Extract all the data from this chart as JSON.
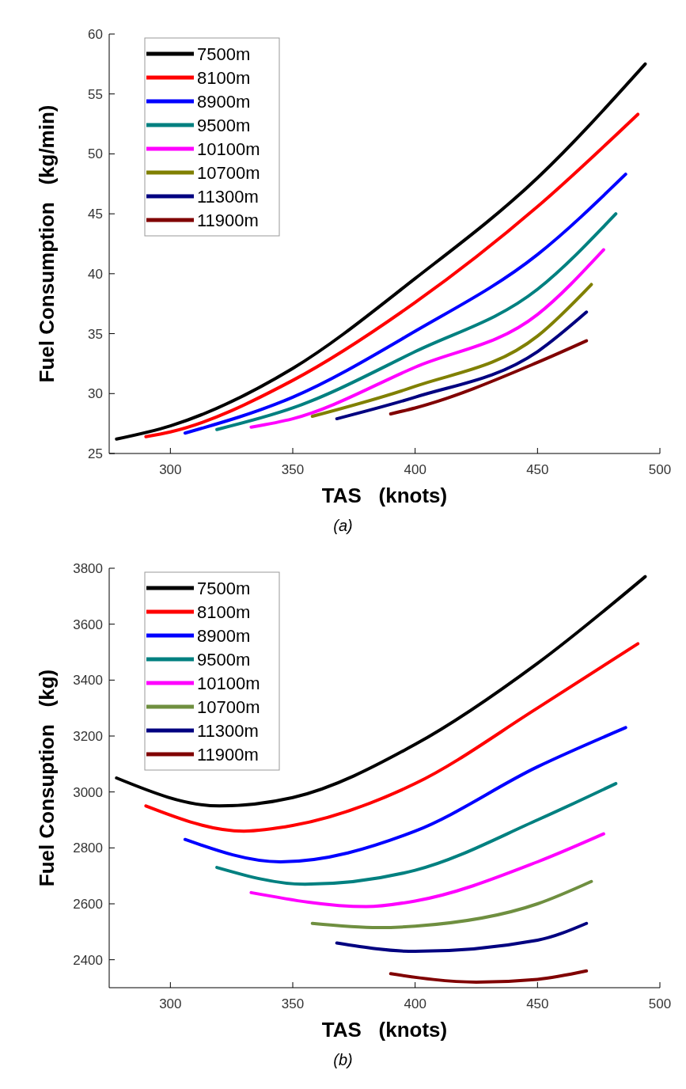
{
  "chart_data": [
    {
      "type": "line",
      "xlabel": "TAS   (knots)",
      "ylabel": "Fuel Consumption   (kg/min)",
      "xlim": [
        275,
        500
      ],
      "xticks": [
        300,
        350,
        400,
        450,
        500
      ],
      "ylim": [
        25,
        60
      ],
      "yticks": [
        25,
        30,
        35,
        40,
        45,
        50,
        55,
        60
      ],
      "legend": "top left",
      "annotations": [
        "(a)"
      ],
      "series": [
        {
          "name": "7500m",
          "color": "#000000",
          "x": [
            278,
            300,
            350,
            400,
            450,
            494
          ],
          "values": [
            26.2,
            27.3,
            32.1,
            39.6,
            48.0,
            57.5
          ]
        },
        {
          "name": "8100m",
          "color": "#ff0000",
          "x": [
            290,
            300,
            350,
            400,
            450,
            491
          ],
          "values": [
            26.4,
            26.8,
            31.1,
            37.6,
            45.6,
            53.3
          ]
        },
        {
          "name": "8900m",
          "color": "#0000ff",
          "x": [
            306,
            350,
            400,
            450,
            486
          ],
          "values": [
            26.7,
            29.7,
            35.2,
            41.6,
            48.3
          ]
        },
        {
          "name": "9500m",
          "color": "#008080",
          "x": [
            319,
            350,
            400,
            450,
            482
          ],
          "values": [
            27.0,
            28.8,
            33.5,
            38.7,
            45.0
          ]
        },
        {
          "name": "10100m",
          "color": "#ff00ff",
          "x": [
            333,
            350,
            400,
            450,
            477
          ],
          "values": [
            27.2,
            27.9,
            32.2,
            36.6,
            42.0
          ]
        },
        {
          "name": "10700m",
          "color": "#808000",
          "x": [
            358,
            400,
            450,
            472
          ],
          "values": [
            28.1,
            30.6,
            34.8,
            39.1
          ]
        },
        {
          "name": "11300m",
          "color": "#000080",
          "x": [
            368,
            400,
            450,
            470
          ],
          "values": [
            27.9,
            29.7,
            33.5,
            36.8
          ]
        },
        {
          "name": "11900m",
          "color": "#800000",
          "x": [
            390,
            400,
            450,
            470
          ],
          "values": [
            28.3,
            28.8,
            32.6,
            34.4
          ]
        }
      ]
    },
    {
      "type": "line",
      "xlabel": "TAS   (knots)",
      "ylabel": "Fuel Consuption   (kg)",
      "xlim": [
        275,
        500
      ],
      "xticks": [
        300,
        350,
        400,
        450,
        500
      ],
      "ylim": [
        2300,
        3800
      ],
      "yticks": [
        2400,
        2600,
        2800,
        3000,
        3200,
        3400,
        3600,
        3800
      ],
      "legend": "top left",
      "annotations": [
        "(b)"
      ],
      "series": [
        {
          "name": "7500m",
          "color": "#000000",
          "x": [
            278,
            320,
            350,
            400,
            450,
            494
          ],
          "values": [
            3050,
            2950,
            2980,
            3170,
            3460,
            3770
          ]
        },
        {
          "name": "8100m",
          "color": "#ff0000",
          "x": [
            290,
            330,
            350,
            400,
            450,
            491
          ],
          "values": [
            2950,
            2860,
            2880,
            3030,
            3300,
            3530
          ]
        },
        {
          "name": "8900m",
          "color": "#0000ff",
          "x": [
            306,
            345,
            400,
            450,
            486
          ],
          "values": [
            2830,
            2750,
            2860,
            3090,
            3230
          ]
        },
        {
          "name": "9500m",
          "color": "#008080",
          "x": [
            319,
            355,
            400,
            450,
            482
          ],
          "values": [
            2730,
            2670,
            2720,
            2900,
            3030
          ]
        },
        {
          "name": "10100m",
          "color": "#ff00ff",
          "x": [
            333,
            380,
            400,
            450,
            477
          ],
          "values": [
            2640,
            2590,
            2610,
            2750,
            2850
          ]
        },
        {
          "name": "10700m",
          "color": "#6f8f40",
          "x": [
            358,
            385,
            400,
            450,
            472
          ],
          "values": [
            2530,
            2515,
            2520,
            2600,
            2680
          ]
        },
        {
          "name": "11300m",
          "color": "#000080",
          "x": [
            368,
            400,
            450,
            470
          ],
          "values": [
            2460,
            2430,
            2470,
            2530
          ]
        },
        {
          "name": "11900m",
          "color": "#800000",
          "x": [
            390,
            425,
            450,
            470
          ],
          "values": [
            2350,
            2320,
            2330,
            2360
          ]
        }
      ]
    }
  ]
}
